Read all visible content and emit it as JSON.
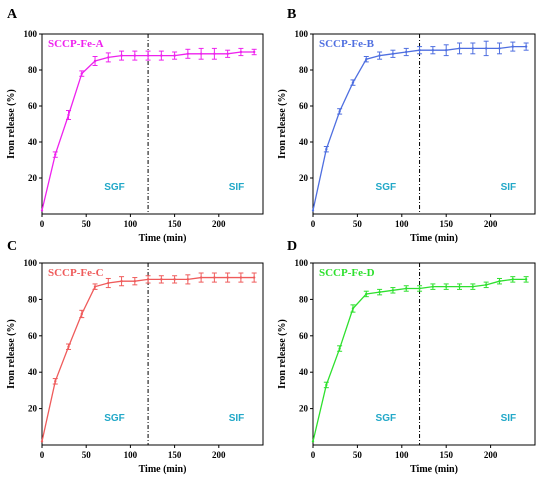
{
  "chart_data": [
    {
      "type": "line",
      "panel_label": "A",
      "legend": "SCCP-Fe-A",
      "color": "#ee22ee",
      "xlabel": "Time (min)",
      "ylabel": "Iron release (%)",
      "xlim": [
        0,
        250
      ],
      "ylim": [
        0,
        100
      ],
      "xticks": [
        0,
        50,
        100,
        150,
        200
      ],
      "yticks": [
        20,
        40,
        60,
        80,
        100
      ],
      "divider_x": 120,
      "phase_labels": [
        "SGF",
        "SIF"
      ],
      "phase_color": "#22a8c8",
      "x": [
        0,
        15,
        30,
        45,
        60,
        75,
        90,
        105,
        120,
        135,
        150,
        165,
        180,
        195,
        210,
        225,
        240
      ],
      "y": [
        2,
        33,
        55,
        78,
        85,
        87,
        88,
        88,
        88,
        88,
        88,
        89,
        89,
        89,
        89,
        90,
        90
      ],
      "err": [
        0,
        1.5,
        2.5,
        1.5,
        2.5,
        2.5,
        2.5,
        2.5,
        2.5,
        2.5,
        2,
        2.5,
        3,
        3,
        2,
        2,
        1.5
      ]
    },
    {
      "type": "line",
      "panel_label": "B",
      "legend": "SCCP-Fe-B",
      "color": "#4f6fe0",
      "xlabel": "Time (min)",
      "ylabel": "Iron release (%)",
      "xlim": [
        0,
        250
      ],
      "ylim": [
        0,
        100
      ],
      "xticks": [
        0,
        50,
        100,
        150,
        200
      ],
      "yticks": [
        20,
        40,
        60,
        80,
        100
      ],
      "divider_x": 120,
      "phase_labels": [
        "SGF",
        "SIF"
      ],
      "phase_color": "#22a8c8",
      "x": [
        0,
        15,
        30,
        45,
        60,
        75,
        90,
        105,
        120,
        135,
        150,
        165,
        180,
        195,
        210,
        225,
        240
      ],
      "y": [
        2,
        36,
        57,
        73,
        86,
        88,
        89,
        90,
        91,
        91,
        91,
        92,
        92,
        92,
        92,
        93,
        93
      ],
      "err": [
        0,
        1.5,
        1.5,
        1.5,
        1.5,
        2,
        2,
        2,
        2,
        2,
        3,
        3,
        3,
        4,
        3,
        2.5,
        2
      ]
    },
    {
      "type": "line",
      "panel_label": "C",
      "legend": "SCCP-Fe-C",
      "color": "#ef5b5b",
      "xlabel": "Time (min)",
      "ylabel": "Iron release (%)",
      "xlim": [
        0,
        250
      ],
      "ylim": [
        0,
        100
      ],
      "xticks": [
        0,
        50,
        100,
        150,
        200
      ],
      "yticks": [
        20,
        40,
        60,
        80,
        100
      ],
      "divider_x": 120,
      "phase_labels": [
        "SGF",
        "SIF"
      ],
      "phase_color": "#22a8c8",
      "x": [
        0,
        15,
        30,
        45,
        60,
        75,
        90,
        105,
        120,
        135,
        150,
        165,
        180,
        195,
        210,
        225,
        240
      ],
      "y": [
        2,
        35,
        54,
        72,
        87,
        89,
        90,
        90,
        91,
        91,
        91,
        91,
        92,
        92,
        92,
        92,
        92
      ],
      "err": [
        0,
        1.5,
        1.5,
        2,
        1.5,
        2.5,
        2.5,
        2,
        2,
        2,
        2,
        2.5,
        2.5,
        2.5,
        2.5,
        2.5,
        2.5
      ]
    },
    {
      "type": "line",
      "panel_label": "D",
      "legend": "SCCP-Fe-D",
      "color": "#2ee02e",
      "xlabel": "Time (min)",
      "ylabel": "Iron release (%)",
      "xlim": [
        0,
        250
      ],
      "ylim": [
        0,
        100
      ],
      "xticks": [
        0,
        50,
        100,
        150,
        200
      ],
      "yticks": [
        20,
        40,
        60,
        80,
        100
      ],
      "divider_x": 120,
      "phase_labels": [
        "SGF",
        "SIF"
      ],
      "phase_color": "#22a8c8",
      "x": [
        0,
        15,
        30,
        45,
        60,
        75,
        90,
        105,
        120,
        135,
        150,
        165,
        180,
        195,
        210,
        225,
        240
      ],
      "y": [
        2,
        33,
        53,
        75,
        83,
        84,
        85,
        86,
        86,
        87,
        87,
        87,
        87,
        88,
        90,
        91,
        91
      ],
      "err": [
        0,
        1.5,
        1.5,
        2,
        1.5,
        1.5,
        1.5,
        1.5,
        1.5,
        1.5,
        1.5,
        1.5,
        1.5,
        1.5,
        1.5,
        1.5,
        1.5
      ]
    }
  ]
}
